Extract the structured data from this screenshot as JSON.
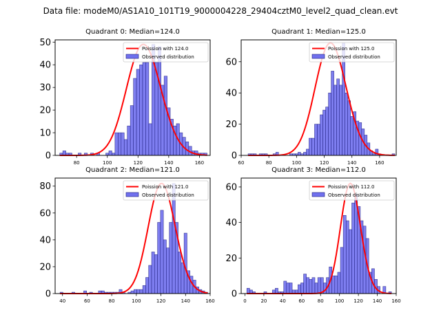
{
  "chart_data": {
    "title": "Data file: modeM0/AS1A10_101T19_9000004228_29404cztM0_level2_quad_clean.evt",
    "colors": {
      "bars": "#7070ee",
      "bar_edge": "#1c1c7a",
      "curve": "#ff0000"
    },
    "legend_labels": {
      "curve_prefix": "Poission with ",
      "bars": "Observed distribution"
    },
    "charts": [
      {
        "type": "bar",
        "title": "Quadrant 0: Median=124.0",
        "median": 124.0,
        "curve_label": "Poission with 124.0",
        "xlim": [
          66,
          167
        ],
        "ylim": [
          0,
          51
        ],
        "xticks": [
          80,
          100,
          120,
          140,
          160
        ],
        "yticks": [
          0,
          10,
          20,
          30,
          40,
          50
        ],
        "bin_start": 69,
        "bin_width": 2,
        "counts": [
          1,
          2,
          1,
          1,
          0,
          0,
          1,
          0,
          1,
          0,
          1,
          0,
          1,
          0,
          0,
          1,
          2,
          1,
          10,
          10,
          10,
          7,
          13,
          22,
          34,
          38,
          40,
          41,
          41,
          14,
          49,
          41,
          48,
          31,
          35,
          21,
          16,
          13,
          14,
          10,
          8,
          6,
          4,
          2,
          2,
          1,
          1,
          1
        ],
        "curve_peak": 49,
        "legend": "top-right"
      },
      {
        "type": "bar",
        "title": "Quadrant 1: Median=125.0",
        "median": 125.0,
        "curve_label": "Poission with 125.0",
        "xlim": [
          60,
          172
        ],
        "ylim": [
          0,
          74
        ],
        "xticks": [
          60,
          80,
          100,
          120,
          140,
          160
        ],
        "yticks": [
          0,
          20,
          40,
          60
        ],
        "bin_start": 65,
        "bin_width": 2,
        "counts": [
          1,
          1,
          1,
          0,
          1,
          1,
          1,
          0,
          0,
          1,
          2,
          0,
          0,
          0,
          0,
          1,
          1,
          1,
          2,
          1,
          2,
          4,
          11,
          11,
          20,
          20,
          26,
          29,
          31,
          40,
          54,
          45,
          49,
          45,
          72,
          40,
          35,
          25,
          28,
          22,
          21,
          17,
          13,
          8,
          3,
          1,
          4,
          1,
          0,
          0,
          0,
          0,
          1
        ],
        "curve_peak": 72,
        "legend": "top-right"
      },
      {
        "type": "bar",
        "title": "Quadrant 2: Median=121.0",
        "median": 121.0,
        "curve_label": "Poission with 121.0",
        "xlim": [
          34,
          160
        ],
        "ylim": [
          0,
          86
        ],
        "xticks": [
          40,
          60,
          80,
          100,
          120,
          140,
          160
        ],
        "yticks": [
          0,
          20,
          40,
          60,
          80
        ],
        "bin_start": 38,
        "bin_width": 2.4,
        "counts": [
          1,
          0,
          0,
          0,
          1,
          0,
          0,
          0,
          2,
          0,
          1,
          0,
          0,
          2,
          2,
          1,
          1,
          1,
          1,
          1,
          3,
          1,
          0,
          1,
          2,
          3,
          3,
          3,
          6,
          12,
          21,
          31,
          29,
          53,
          62,
          40,
          34,
          53,
          82,
          53,
          31,
          23,
          45,
          17,
          13,
          10,
          5,
          3,
          2,
          1
        ],
        "curve_peak": 82,
        "legend": "top-right"
      },
      {
        "type": "bar",
        "title": "Quadrant 3: Median=112.0",
        "median": 112.0,
        "curve_label": "Poission with 112.0",
        "xlim": [
          -4,
          160
        ],
        "ylim": [
          0,
          65
        ],
        "xticks": [
          0,
          20,
          40,
          60,
          80,
          100,
          120,
          140,
          160
        ],
        "yticks": [
          0,
          20,
          40,
          60
        ],
        "bin_start": 2,
        "bin_width": 3,
        "counts": [
          3,
          2,
          1,
          0,
          0,
          0,
          1,
          0,
          0,
          2,
          3,
          1,
          1,
          7,
          6,
          6,
          2,
          2,
          5,
          6,
          11,
          9,
          8,
          9,
          6,
          9,
          9,
          6,
          9,
          15,
          10,
          10,
          12,
          26,
          44,
          41,
          36,
          51,
          56,
          49,
          41,
          38,
          31,
          12,
          14,
          8,
          4,
          0,
          4,
          0,
          1
        ],
        "curve_peak": 62,
        "legend": "top-right"
      }
    ]
  }
}
